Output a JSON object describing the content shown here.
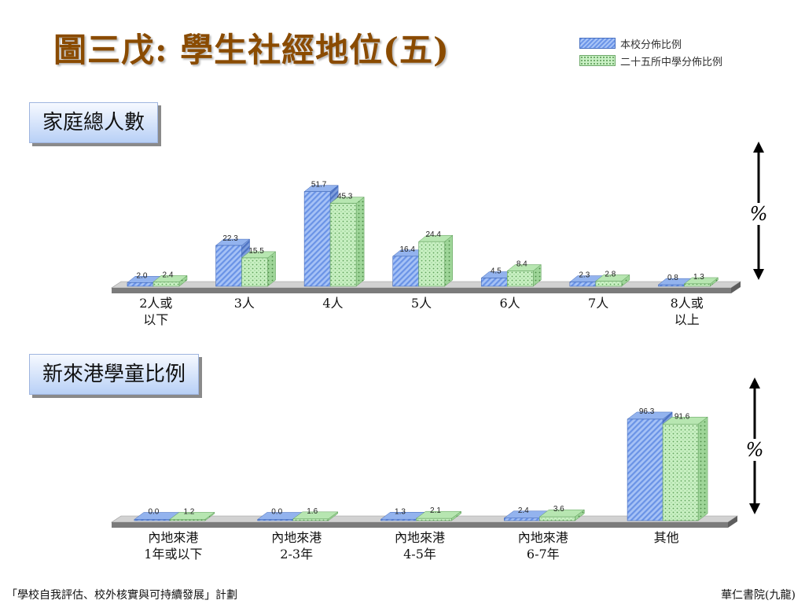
{
  "title": "圖三戊: 學生社經地位(五)",
  "legend": {
    "series1": "本校分佈比例",
    "series2": "二十五所中學分佈比例"
  },
  "footer": {
    "left": "「學校自我評估、校外核實與可持續發展」計劃",
    "right": "華仁書院(九龍)"
  },
  "colors": {
    "series1": "#6c95e8",
    "series2": "#b9ecb4",
    "title": "#8a4b00"
  },
  "chart_data": [
    {
      "type": "bar",
      "section_label": "家庭總人數",
      "axis_unit_label": "%",
      "categories": [
        [
          "2人或",
          "以下"
        ],
        [
          "3人"
        ],
        [
          "4人"
        ],
        [
          "5人"
        ],
        [
          "6人"
        ],
        [
          "7人"
        ],
        [
          "8人或",
          "以上"
        ]
      ],
      "series": [
        {
          "name": "本校分佈比例",
          "values": [
            2.0,
            22.3,
            51.7,
            16.4,
            4.5,
            2.3,
            0.8
          ],
          "labels": [
            "2.0",
            "22.3",
            "51.7",
            "16.4",
            "4.5",
            "2.3",
            "0.8"
          ]
        },
        {
          "name": "二十五所中學分佈比例",
          "values": [
            2.4,
            15.5,
            45.3,
            24.4,
            8.4,
            2.8,
            1.3
          ],
          "labels": [
            "2.4",
            "15.5",
            "45.3",
            "24.4",
            "8.4",
            "2.8",
            "1.3"
          ]
        }
      ],
      "ylim": [
        0,
        55
      ],
      "grid": true
    },
    {
      "type": "bar",
      "section_label": "新來港學童比例",
      "axis_unit_label": "%",
      "categories": [
        [
          "內地來港",
          "1年或以下"
        ],
        [
          "內地來港",
          "2-3年"
        ],
        [
          "內地來港",
          "4-5年"
        ],
        [
          "內地來港",
          "6-7年"
        ],
        [
          "其他"
        ]
      ],
      "series": [
        {
          "name": "本校分佈比例",
          "values": [
            0.0,
            0.0,
            1.3,
            2.4,
            96.3
          ],
          "labels": [
            "0.0",
            "0.0",
            "1.3",
            "2.4",
            "96.3"
          ]
        },
        {
          "name": "二十五所中學分佈比例",
          "values": [
            1.2,
            1.6,
            2.1,
            3.6,
            91.6
          ],
          "labels": [
            "1.2",
            "1.6",
            "2.1",
            "3.6",
            "91.6"
          ]
        }
      ],
      "ylim": [
        0,
        100
      ],
      "grid": true
    }
  ]
}
